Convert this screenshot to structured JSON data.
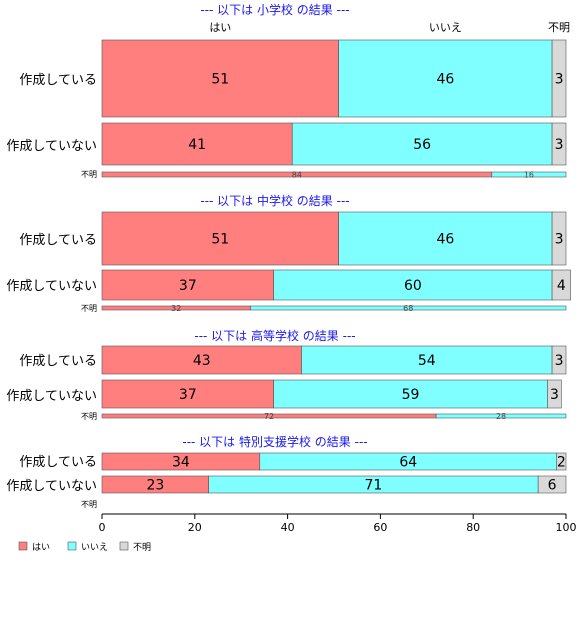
{
  "chart_data": {
    "type": "bar",
    "orientation": "horizontal",
    "stacked": true,
    "category_header_labels": [
      "はい",
      "いいえ",
      "不明"
    ],
    "colors": {
      "yes": "#ff7f7f",
      "no": "#7fffff",
      "unknown": "#d9d9d9"
    },
    "xlim": [
      0,
      100
    ],
    "xticks": [
      "0",
      "20",
      "40",
      "60",
      "80",
      "100"
    ],
    "legend": {
      "placement": "bottom-left",
      "items": [
        "はい",
        "いいえ",
        "不明"
      ]
    },
    "panels": [
      {
        "title": "--- 以下は 小学校 の結果 ---",
        "rows": [
          {
            "label": "作成している",
            "values": [
              51,
              46,
              3
            ]
          },
          {
            "label": "作成していない",
            "values": [
              41,
              56,
              3
            ]
          },
          {
            "label": "不明",
            "values": [
              84,
              16,
              0
            ]
          }
        ]
      },
      {
        "title": "--- 以下は 中学校 の結果 ---",
        "rows": [
          {
            "label": "作成している",
            "values": [
              51,
              46,
              3
            ]
          },
          {
            "label": "作成していない",
            "values": [
              37,
              60,
              4
            ]
          },
          {
            "label": "不明",
            "values": [
              32,
              68,
              0
            ]
          }
        ]
      },
      {
        "title": "--- 以下は 高等学校 の結果 ---",
        "rows": [
          {
            "label": "作成している",
            "values": [
              43,
              54,
              3
            ]
          },
          {
            "label": "作成していない",
            "values": [
              37,
              59,
              3
            ]
          },
          {
            "label": "不明",
            "values": [
              72,
              28,
              0
            ]
          }
        ]
      },
      {
        "title": "--- 以下は 特別支援学校 の結果 ---",
        "rows": [
          {
            "label": "作成している",
            "values": [
              34,
              64,
              2
            ]
          },
          {
            "label": "作成していない",
            "values": [
              23,
              71,
              6
            ]
          },
          {
            "label": "不明",
            "values": []
          }
        ]
      }
    ]
  }
}
